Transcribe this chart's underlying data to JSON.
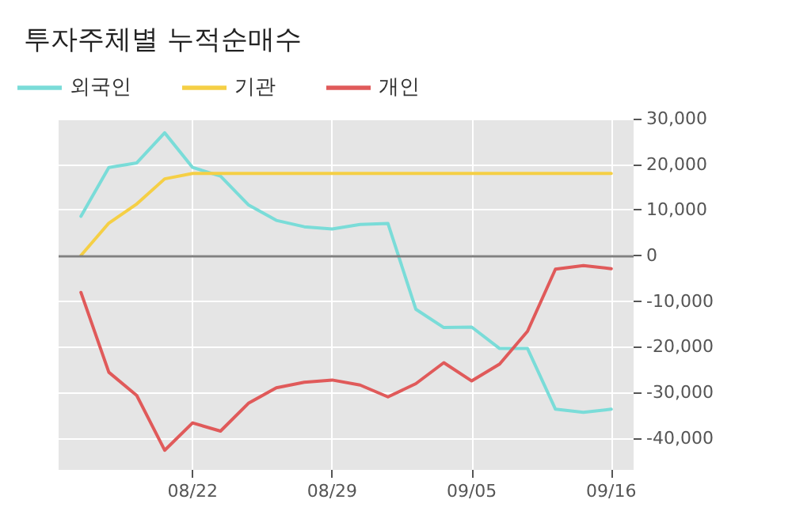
{
  "chart_data": {
    "type": "line",
    "title": "투자주체별 누적순매수",
    "categories": [
      null,
      null,
      null,
      null,
      "08/22",
      null,
      null,
      null,
      null,
      "08/29",
      null,
      null,
      null,
      null,
      "09/05",
      null,
      null,
      null,
      null,
      "09/16"
    ],
    "series": [
      {
        "name": "외국인",
        "color": "#7adcd8",
        "values": [
          8600,
          19300,
          20300,
          26900,
          19300,
          17400,
          11100,
          7700,
          6300,
          5800,
          6800,
          7000,
          -11800,
          -15800,
          -15700,
          -20400,
          -20400,
          -33700,
          -34400,
          -33700
        ]
      },
      {
        "name": "기관",
        "color": "#f5cf45",
        "values": [
          0,
          7100,
          11300,
          16800,
          18000,
          18000,
          18000,
          18000,
          18000,
          18000,
          18000,
          18000,
          18000,
          18000,
          18000,
          18000,
          18000,
          18000,
          18000,
          18000
        ]
      },
      {
        "name": "개인",
        "color": "#e05a5a",
        "values": [
          -8100,
          -25600,
          -30700,
          -42700,
          -36700,
          -38500,
          -32400,
          -29000,
          -27800,
          -27300,
          -28400,
          -31000,
          -28100,
          -23500,
          -27500,
          -23800,
          -16600,
          -3000,
          -2200,
          -2900
        ]
      }
    ],
    "ylim": [
      -47000,
      30000
    ],
    "yticks": [
      {
        "value": -40000,
        "label": "-40,000"
      },
      {
        "value": -30000,
        "label": "-30,000"
      },
      {
        "value": -20000,
        "label": "-20,000"
      },
      {
        "value": -10000,
        "label": "-10,000"
      },
      {
        "value": 0,
        "label": "0"
      },
      {
        "value": 10000,
        "label": "10,000"
      },
      {
        "value": 20000,
        "label": "20,000"
      },
      {
        "value": 30000,
        "label": "30,000"
      }
    ],
    "ref_lines": [
      {
        "axis": "y",
        "value": 0,
        "color": "#808080"
      }
    ],
    "grid": true,
    "legend": "top left",
    "marker": "none",
    "line_style": "solid"
  }
}
